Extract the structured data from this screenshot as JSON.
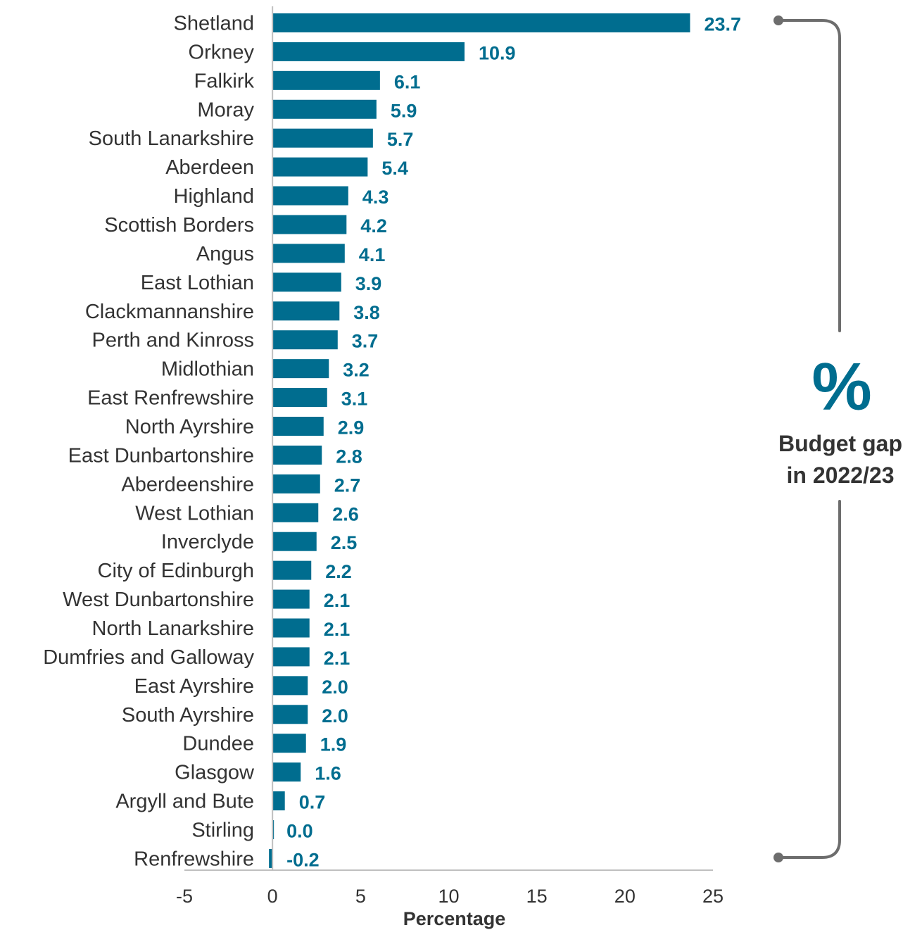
{
  "chart_data": {
    "type": "bar",
    "orientation": "horizontal",
    "categories": [
      "Shetland",
      "Orkney",
      "Falkirk",
      "Moray",
      "South Lanarkshire",
      "Aberdeen",
      "Highland",
      "Scottish Borders",
      "Angus",
      "East Lothian",
      "Clackmannanshire",
      "Perth and Kinross",
      "Midlothian",
      "East Renfrewshire",
      "North Ayrshire",
      "East Dunbartonshire",
      "Aberdeenshire",
      "West Lothian",
      "Inverclyde",
      "City of Edinburgh",
      "West Dunbartonshire",
      "North Lanarkshire",
      "Dumfries and Galloway",
      "East Ayrshire",
      "South Ayrshire",
      "Dundee",
      "Glasgow",
      "Argyll and Bute",
      "Stirling",
      "Renfrewshire"
    ],
    "values": [
      23.7,
      10.9,
      6.1,
      5.9,
      5.7,
      5.4,
      4.3,
      4.2,
      4.1,
      3.9,
      3.8,
      3.7,
      3.2,
      3.1,
      2.9,
      2.8,
      2.7,
      2.6,
      2.5,
      2.2,
      2.1,
      2.1,
      2.1,
      2.0,
      2.0,
      1.9,
      1.6,
      0.7,
      0.0,
      -0.2
    ],
    "value_labels": [
      "23.7",
      "10.9",
      "6.1",
      "5.9",
      "5.7",
      "5.4",
      "4.3",
      "4.2",
      "4.1",
      "3.9",
      "3.8",
      "3.7",
      "3.2",
      "3.1",
      "2.9",
      "2.8",
      "2.7",
      "2.6",
      "2.5",
      "2.2",
      "2.1",
      "2.1",
      "2.1",
      "2.0",
      "2.0",
      "1.9",
      "1.6",
      "0.7",
      "0.0",
      "-0.2"
    ],
    "xlabel": "Percentage",
    "xlim": [
      -5,
      25
    ],
    "xticks": [
      -5,
      0,
      5,
      10,
      15,
      20,
      25
    ],
    "xtick_labels": [
      "-5",
      "0",
      "5",
      "10",
      "15",
      "20",
      "25"
    ],
    "grid": false,
    "bar_color": "#006d8f",
    "label_color": "#006d8f"
  },
  "annotation": {
    "symbol": "%",
    "line1": "Budget gap",
    "line2": "in 2022/23",
    "symbol_color": "#006d8f",
    "bracket_color": "#6d6d6d"
  }
}
